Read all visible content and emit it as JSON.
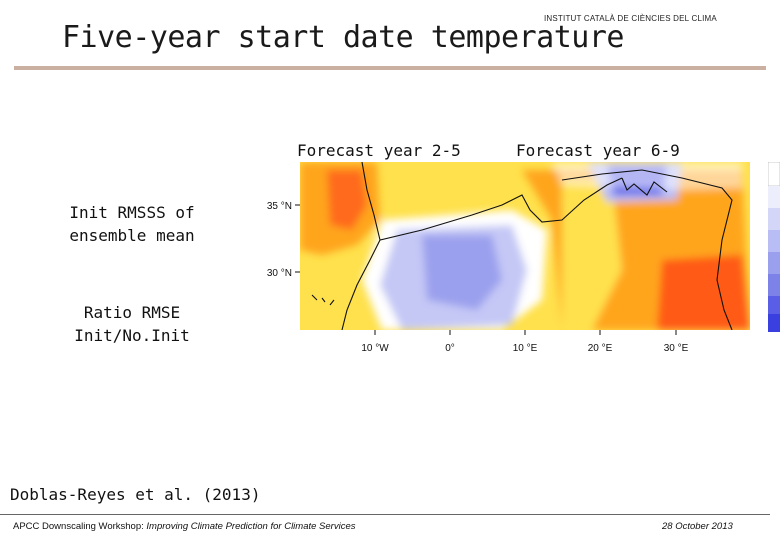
{
  "header": {
    "institute": "INSTITUT CATALÀ DE CIÈNCIES DEL CLIMA",
    "title": "Five-year start date temperature"
  },
  "columns": [
    "Forecast year 2-5",
    "Forecast year 6-9"
  ],
  "rows": [
    "Init RMSSS of ensemble mean",
    "Ratio RMSE Init/No.Init"
  ],
  "map": {
    "lat_ticks": [
      "35 °N",
      "30 °N"
    ],
    "lon_ticks": [
      "10 °W",
      "0°",
      "10 °E",
      "20 °E",
      "30 °E"
    ]
  },
  "reference": "Doblas-Reyes et al. (2013)",
  "footer": {
    "workshop": "APCC Downscaling Workshop: ",
    "workshop_subtitle": "Improving Climate Prediction for Climate Services",
    "date": "28 October 2013"
  },
  "colors": {
    "rule": "#c9b0a0",
    "map_yellow": "#ffe14d",
    "map_orange": "#ffa51f",
    "map_red": "#ff5a16",
    "map_lightblue": "#b9bdf5",
    "map_blue": "#5a5ee6"
  }
}
